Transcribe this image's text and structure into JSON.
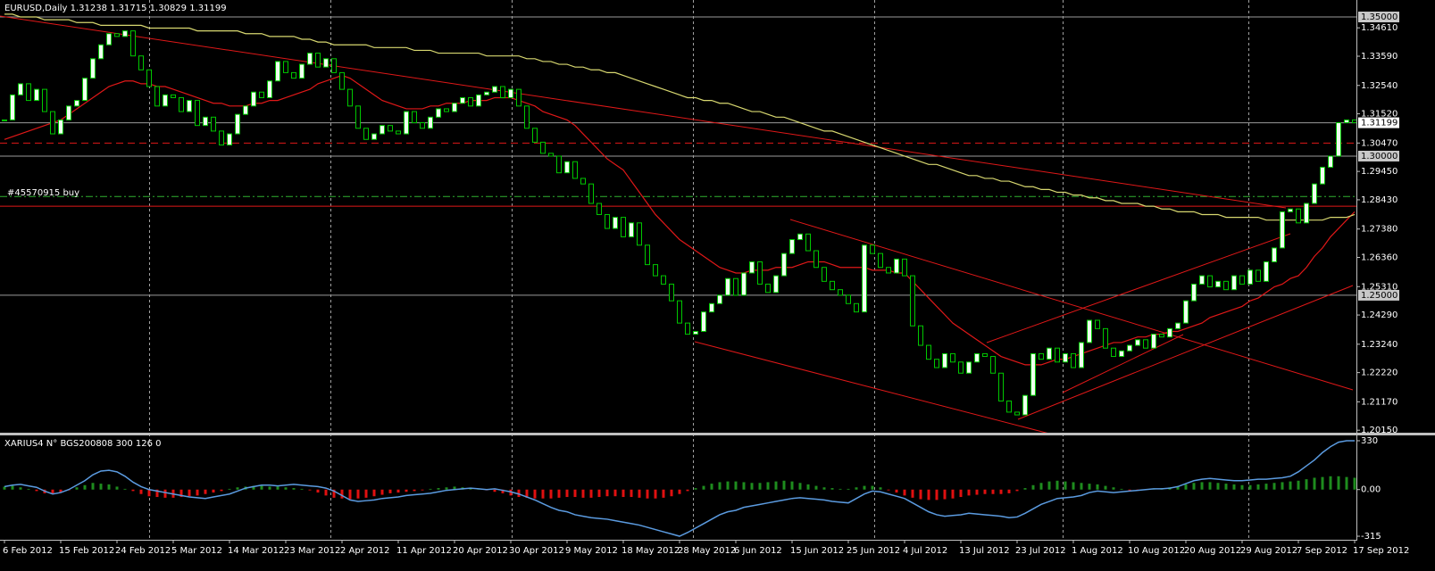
{
  "chart_data": [
    {
      "type": "candlestick",
      "title": "EURUSD,Daily  1.31238 1.31715 1.30829 1.31199",
      "annotation": "#45570915 buy",
      "categories": [
        "6 Feb 2012",
        null,
        null,
        null,
        null,
        null,
        null,
        "15 Feb 2012",
        null,
        null,
        null,
        null,
        null,
        null,
        "24 Feb 2012",
        null,
        null,
        null,
        null,
        null,
        null,
        "5 Mar 2012",
        null,
        null,
        null,
        null,
        null,
        null,
        "14 Mar 2012",
        null,
        null,
        null,
        null,
        null,
        null,
        "23 Mar 2012",
        null,
        null,
        null,
        null,
        null,
        null,
        "2 Apr 2012",
        null,
        null,
        null,
        null,
        null,
        null,
        "11 Apr 2012",
        null,
        null,
        null,
        null,
        null,
        null,
        "20 Apr 2012",
        null,
        null,
        null,
        null,
        null,
        null,
        "30 Apr 2012",
        null,
        null,
        null,
        null,
        null,
        null,
        "9 May 2012",
        null,
        null,
        null,
        null,
        null,
        null,
        "18 May 2012",
        null,
        null,
        null,
        null,
        null,
        null,
        "28 May 2012",
        null,
        null,
        null,
        null,
        null,
        null,
        "6 Jun 2012",
        null,
        null,
        null,
        null,
        null,
        null,
        "15 Jun 2012",
        null,
        null,
        null,
        null,
        null,
        null,
        "25 Jun 2012",
        null,
        null,
        null,
        null,
        null,
        null,
        "4 Jul 2012",
        null,
        null,
        null,
        null,
        null,
        null,
        "13 Jul 2012",
        null,
        null,
        null,
        null,
        null,
        null,
        "23 Jul 2012",
        null,
        null,
        null,
        null,
        null,
        null,
        "1 Aug 2012",
        null,
        null,
        null,
        null,
        null,
        null,
        "10 Aug 2012",
        null,
        null,
        null,
        null,
        null,
        null,
        "20 Aug 2012",
        null,
        null,
        null,
        null,
        null,
        null,
        "29 Aug 2012",
        null,
        null,
        null,
        null,
        null,
        null,
        "7 Sep 2012",
        null,
        null,
        null,
        null,
        null,
        null,
        "17 Sep 2012"
      ],
      "close": [
        1.313,
        1.322,
        1.326,
        1.32,
        1.324,
        1.316,
        1.308,
        1.313,
        1.318,
        1.32,
        1.328,
        1.335,
        1.34,
        1.344,
        1.343,
        1.345,
        1.336,
        1.331,
        1.325,
        1.318,
        1.322,
        1.321,
        1.316,
        1.32,
        1.311,
        1.314,
        1.309,
        1.304,
        1.308,
        1.315,
        1.318,
        1.323,
        1.321,
        1.327,
        1.334,
        1.33,
        1.328,
        1.333,
        1.337,
        1.332,
        1.335,
        1.33,
        1.324,
        1.318,
        1.31,
        1.306,
        1.308,
        1.311,
        1.309,
        1.308,
        1.316,
        1.312,
        1.31,
        1.314,
        1.317,
        1.316,
        1.319,
        1.321,
        1.318,
        1.322,
        1.323,
        1.325,
        1.321,
        1.324,
        1.318,
        1.31,
        1.305,
        1.301,
        1.3,
        1.294,
        1.298,
        1.292,
        1.29,
        1.283,
        1.279,
        1.274,
        1.278,
        1.271,
        1.276,
        1.268,
        1.261,
        1.257,
        1.254,
        1.248,
        1.24,
        1.236,
        1.237,
        1.244,
        1.247,
        1.25,
        1.256,
        1.25,
        1.258,
        1.262,
        1.254,
        1.251,
        1.257,
        1.265,
        1.27,
        1.272,
        1.266,
        1.26,
        1.255,
        1.252,
        1.25,
        1.247,
        1.244,
        1.268,
        1.265,
        1.26,
        1.258,
        1.263,
        1.257,
        1.239,
        1.232,
        1.227,
        1.224,
        1.229,
        1.226,
        1.222,
        1.226,
        1.229,
        1.228,
        1.222,
        1.212,
        1.208,
        1.207,
        1.214,
        1.229,
        1.227,
        1.231,
        1.226,
        1.229,
        1.224,
        1.233,
        1.241,
        1.238,
        1.231,
        1.228,
        1.23,
        1.232,
        1.234,
        1.231,
        1.236,
        1.235,
        1.238,
        1.24,
        1.248,
        1.254,
        1.257,
        1.253,
        1.255,
        1.252,
        1.257,
        1.254,
        1.259,
        1.255,
        1.262,
        1.267,
        1.28,
        1.281,
        1.276,
        1.283,
        1.29,
        1.296,
        1.3,
        1.312,
        1.313,
        1.312
      ],
      "candle": {
        "stroke": "#00c800",
        "up_fill": "#f0fff0",
        "down_fill": "#000000"
      },
      "ma": [
        {
          "color": "#e01818",
          "values": [
            1.306,
            1.307,
            1.308,
            1.309,
            1.31,
            1.311,
            1.312,
            1.313,
            1.315,
            1.317,
            1.319,
            1.321,
            1.323,
            1.325,
            1.326,
            1.327,
            1.327,
            1.326,
            1.326,
            1.325,
            1.325,
            1.324,
            1.323,
            1.322,
            1.321,
            1.32,
            1.319,
            1.319,
            1.318,
            1.318,
            1.318,
            1.319,
            1.319,
            1.32,
            1.32,
            1.321,
            1.322,
            1.323,
            1.324,
            1.326,
            1.327,
            1.328,
            1.329,
            1.328,
            1.326,
            1.324,
            1.322,
            1.32,
            1.319,
            1.318,
            1.317,
            1.317,
            1.317,
            1.318,
            1.318,
            1.319,
            1.319,
            1.319,
            1.32,
            1.32,
            1.32,
            1.321,
            1.321,
            1.321,
            1.32,
            1.319,
            1.318,
            1.316,
            1.315,
            1.314,
            1.313,
            1.311,
            1.308,
            1.305,
            1.302,
            1.299,
            1.297,
            1.295,
            1.291,
            1.287,
            1.283,
            1.279,
            1.276,
            1.273,
            1.27,
            1.268,
            1.266,
            1.264,
            1.262,
            1.26,
            1.259,
            1.258,
            1.258,
            1.259,
            1.259,
            1.259,
            1.26,
            1.26,
            1.26,
            1.261,
            1.262,
            1.262,
            1.262,
            1.261,
            1.26,
            1.26,
            1.26,
            1.26,
            1.259,
            1.259,
            1.259,
            1.258,
            1.258,
            1.255,
            1.252,
            1.249,
            1.246,
            1.243,
            1.24,
            1.238,
            1.236,
            1.234,
            1.232,
            1.23,
            1.228,
            1.227,
            1.226,
            1.225,
            1.225,
            1.225,
            1.226,
            1.227,
            1.227,
            1.228,
            1.229,
            1.23,
            1.231,
            1.232,
            1.233,
            1.233,
            1.234,
            1.235,
            1.235,
            1.236,
            1.236,
            1.237,
            1.237,
            1.238,
            1.239,
            1.24,
            1.242,
            1.243,
            1.244,
            1.245,
            1.246,
            1.248,
            1.249,
            1.251,
            1.253,
            1.254,
            1.256,
            1.257,
            1.26,
            1.264,
            1.267,
            1.271,
            1.274,
            1.277,
            1.28
          ]
        },
        {
          "color": "#d8d870",
          "values": [
            1.351,
            1.351,
            1.35,
            1.35,
            1.35,
            1.349,
            1.349,
            1.349,
            1.349,
            1.348,
            1.348,
            1.348,
            1.347,
            1.347,
            1.347,
            1.347,
            1.347,
            1.347,
            1.346,
            1.346,
            1.346,
            1.346,
            1.346,
            1.346,
            1.345,
            1.345,
            1.345,
            1.345,
            1.345,
            1.345,
            1.344,
            1.344,
            1.344,
            1.343,
            1.343,
            1.343,
            1.343,
            1.342,
            1.342,
            1.341,
            1.341,
            1.34,
            1.34,
            1.34,
            1.34,
            1.34,
            1.339,
            1.339,
            1.339,
            1.339,
            1.339,
            1.338,
            1.338,
            1.338,
            1.337,
            1.337,
            1.337,
            1.337,
            1.337,
            1.337,
            1.336,
            1.336,
            1.336,
            1.336,
            1.336,
            1.335,
            1.335,
            1.334,
            1.334,
            1.333,
            1.333,
            1.332,
            1.332,
            1.331,
            1.331,
            1.33,
            1.33,
            1.329,
            1.328,
            1.327,
            1.326,
            1.325,
            1.324,
            1.323,
            1.322,
            1.321,
            1.321,
            1.32,
            1.32,
            1.319,
            1.319,
            1.318,
            1.317,
            1.316,
            1.316,
            1.315,
            1.314,
            1.314,
            1.313,
            1.312,
            1.311,
            1.31,
            1.309,
            1.309,
            1.308,
            1.307,
            1.306,
            1.305,
            1.304,
            1.303,
            1.302,
            1.301,
            1.3,
            1.299,
            1.298,
            1.297,
            1.297,
            1.296,
            1.295,
            1.294,
            1.293,
            1.293,
            1.292,
            1.292,
            1.291,
            1.291,
            1.29,
            1.289,
            1.289,
            1.288,
            1.288,
            1.287,
            1.287,
            1.286,
            1.286,
            1.285,
            1.285,
            1.284,
            1.284,
            1.283,
            1.283,
            1.283,
            1.282,
            1.282,
            1.281,
            1.281,
            1.28,
            1.28,
            1.28,
            1.279,
            1.279,
            1.279,
            1.278,
            1.278,
            1.278,
            1.278,
            1.278,
            1.277,
            1.277,
            1.277,
            1.277,
            1.277,
            1.277,
            1.277,
            1.277,
            1.278,
            1.278,
            1.278,
            1.279
          ]
        }
      ],
      "ylim": [
        1.2006,
        1.3561
      ],
      "yticks": [
        {
          "value": 1.3461,
          "label": "1.34610"
        },
        {
          "value": 1.3359,
          "label": "1.33590"
        },
        {
          "value": 1.3254,
          "label": "1.32540"
        },
        {
          "value": 1.3152,
          "label": "1.31520"
        },
        {
          "value": 1.3047,
          "label": "1.30470"
        },
        {
          "value": 1.2945,
          "label": "1.29450"
        },
        {
          "value": 1.2843,
          "label": "1.28430"
        },
        {
          "value": 1.2738,
          "label": "1.27380"
        },
        {
          "value": 1.2636,
          "label": "1.26360"
        },
        {
          "value": 1.2531,
          "label": "1.25310"
        },
        {
          "value": 1.2429,
          "label": "1.24290"
        },
        {
          "value": 1.2324,
          "label": "1.23240"
        },
        {
          "value": 1.2222,
          "label": "1.22220"
        },
        {
          "value": 1.2117,
          "label": "1.21170"
        },
        {
          "value": 1.2015,
          "label": "1.20150"
        }
      ],
      "levels": [
        {
          "value": 1.35,
          "label": "1.35000",
          "color": "#9a9a9a",
          "label_bg": "#c8c8c8"
        },
        {
          "value": 1.31199,
          "label": "1.31199",
          "color": "#9a9a9a",
          "label_bg": "#ffffff"
        },
        {
          "value": 1.3,
          "label": "1.30000",
          "color": "#9a9a9a",
          "label_bg": "#c8c8c8"
        },
        {
          "value": 1.25,
          "label": "1.25000",
          "color": "#9a9a9a",
          "label_bg": "#c8c8c8"
        }
      ],
      "lines": [
        {
          "value": 1.3047,
          "color": "#e01818",
          "dash": "8,5"
        },
        {
          "value": 1.2855,
          "color": "#30b030",
          "dash": "8,3,2,3"
        },
        {
          "value": 1.282,
          "color": "#e01818",
          "dash": "none"
        }
      ]
    },
    {
      "type": "oscillator",
      "title": "XARIUS4 N° BGS200808 300 126 0",
      "histogram": [
        20,
        25,
        15,
        5,
        -10,
        -25,
        -30,
        -20,
        -5,
        15,
        30,
        45,
        40,
        35,
        20,
        5,
        -10,
        -30,
        -45,
        -50,
        -55,
        -55,
        -50,
        -45,
        -40,
        -30,
        -20,
        -10,
        5,
        15,
        20,
        25,
        25,
        20,
        20,
        15,
        10,
        5,
        -5,
        -20,
        -40,
        -55,
        -60,
        -65,
        -60,
        -55,
        -45,
        -35,
        -25,
        -20,
        -15,
        -10,
        -5,
        5,
        10,
        15,
        20,
        15,
        10,
        5,
        -5,
        -15,
        -25,
        -40,
        -50,
        -55,
        -60,
        -60,
        -60,
        -55,
        -50,
        -50,
        -55,
        -55,
        -50,
        -45,
        -45,
        -50,
        -50,
        -55,
        -60,
        -60,
        -55,
        -45,
        -30,
        -10,
        10,
        25,
        40,
        50,
        55,
        55,
        50,
        45,
        45,
        50,
        55,
        60,
        55,
        45,
        35,
        25,
        15,
        10,
        5,
        5,
        15,
        25,
        25,
        15,
        -5,
        -20,
        -40,
        -55,
        -65,
        -70,
        -70,
        -65,
        -60,
        -50,
        -40,
        -35,
        -30,
        -30,
        -30,
        -25,
        -10,
        10,
        30,
        45,
        55,
        60,
        55,
        50,
        45,
        40,
        35,
        25,
        15,
        5,
        -5,
        -5,
        0,
        5,
        10,
        15,
        20,
        35,
        45,
        50,
        50,
        45,
        40,
        35,
        30,
        30,
        35,
        40,
        45,
        50,
        55,
        60,
        70,
        80,
        85,
        90,
        90,
        85,
        80
      ],
      "pos_color": "#1e8c1e",
      "neg_color": "#e01010",
      "line": {
        "color": "#5b9be0",
        "values": [
          20,
          30,
          35,
          25,
          15,
          -10,
          -30,
          -20,
          0,
          30,
          60,
          100,
          125,
          130,
          120,
          90,
          50,
          20,
          0,
          -10,
          -20,
          -30,
          -40,
          -50,
          -55,
          -60,
          -50,
          -40,
          -30,
          -10,
          10,
          20,
          30,
          30,
          25,
          30,
          35,
          30,
          25,
          20,
          10,
          -10,
          -40,
          -70,
          -80,
          -75,
          -70,
          -60,
          -55,
          -50,
          -40,
          -35,
          -30,
          -25,
          -15,
          -5,
          0,
          5,
          10,
          5,
          0,
          5,
          -5,
          -15,
          -30,
          -50,
          -70,
          -95,
          -120,
          -140,
          -150,
          -170,
          -180,
          -190,
          -195,
          -200,
          -210,
          -220,
          -230,
          -240,
          -255,
          -270,
          -285,
          -300,
          -315,
          -290,
          -260,
          -230,
          -200,
          -170,
          -150,
          -140,
          -120,
          -110,
          -100,
          -90,
          -80,
          -70,
          -60,
          -55,
          -60,
          -65,
          -70,
          -80,
          -85,
          -90,
          -60,
          -30,
          -10,
          -15,
          -30,
          -45,
          -60,
          -90,
          -120,
          -150,
          -170,
          -180,
          -175,
          -170,
          -160,
          -165,
          -170,
          -175,
          -180,
          -190,
          -185,
          -160,
          -130,
          -100,
          -80,
          -60,
          -55,
          -50,
          -40,
          -20,
          -10,
          -15,
          -20,
          -15,
          -10,
          -5,
          0,
          5,
          5,
          10,
          20,
          40,
          60,
          70,
          75,
          70,
          65,
          60,
          60,
          65,
          70,
          70,
          75,
          80,
          90,
          120,
          160,
          200,
          250,
          290,
          320,
          330,
          330
        ]
      },
      "ylim": [
        -339,
        360
      ],
      "yticks": [
        330,
        {
          "value": 0,
          "label": "0.00"
        },
        -315
      ]
    }
  ]
}
